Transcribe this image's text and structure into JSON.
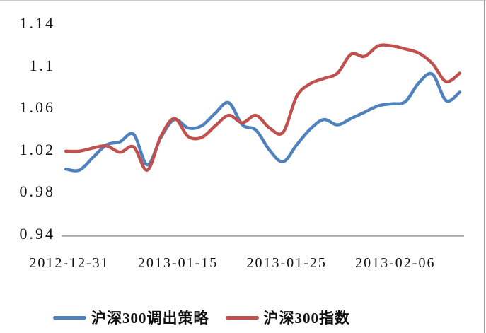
{
  "chart_data": {
    "type": "line",
    "title": "",
    "x_tick_labels": [
      "2012-12-31",
      "2013-01-15",
      "2013-01-25",
      "2013-02-06"
    ],
    "x_tick_point_indices": [
      0,
      8,
      16,
      24
    ],
    "n_points": 30,
    "ylim": [
      0.94,
      1.14
    ],
    "y_ticks": [
      0.94,
      0.98,
      1.02,
      1.06,
      1.1,
      1.14
    ],
    "y_tick_labels": [
      "0.94",
      "0.98",
      "1.02",
      "1.06",
      "1.1",
      "1.14"
    ],
    "grid": false,
    "legend_position": "bottom",
    "axis_line_color": "#a6a6a6",
    "text_color": "#111111",
    "background_color": "#ffffff",
    "border_top_color": "#c9c9c9",
    "border_right_color": "#9a9a9a",
    "series": [
      {
        "name": "沪深300调出策略",
        "color": "#4F81BD",
        "values": [
          1.003,
          1.002,
          1.014,
          1.026,
          1.029,
          1.036,
          1.007,
          1.033,
          1.05,
          1.042,
          1.044,
          1.056,
          1.066,
          1.045,
          1.04,
          1.021,
          1.01,
          1.026,
          1.041,
          1.05,
          1.045,
          1.051,
          1.057,
          1.063,
          1.065,
          1.067,
          1.085,
          1.093,
          1.068,
          1.076
        ]
      },
      {
        "name": "沪深300指数",
        "color": "#C0504D",
        "values": [
          1.02,
          1.02,
          1.023,
          1.025,
          1.019,
          1.024,
          1.002,
          1.034,
          1.051,
          1.034,
          1.033,
          1.044,
          1.054,
          1.047,
          1.054,
          1.042,
          1.038,
          1.072,
          1.084,
          1.089,
          1.094,
          1.112,
          1.11,
          1.12,
          1.12,
          1.117,
          1.113,
          1.103,
          1.086,
          1.094
        ]
      }
    ]
  }
}
